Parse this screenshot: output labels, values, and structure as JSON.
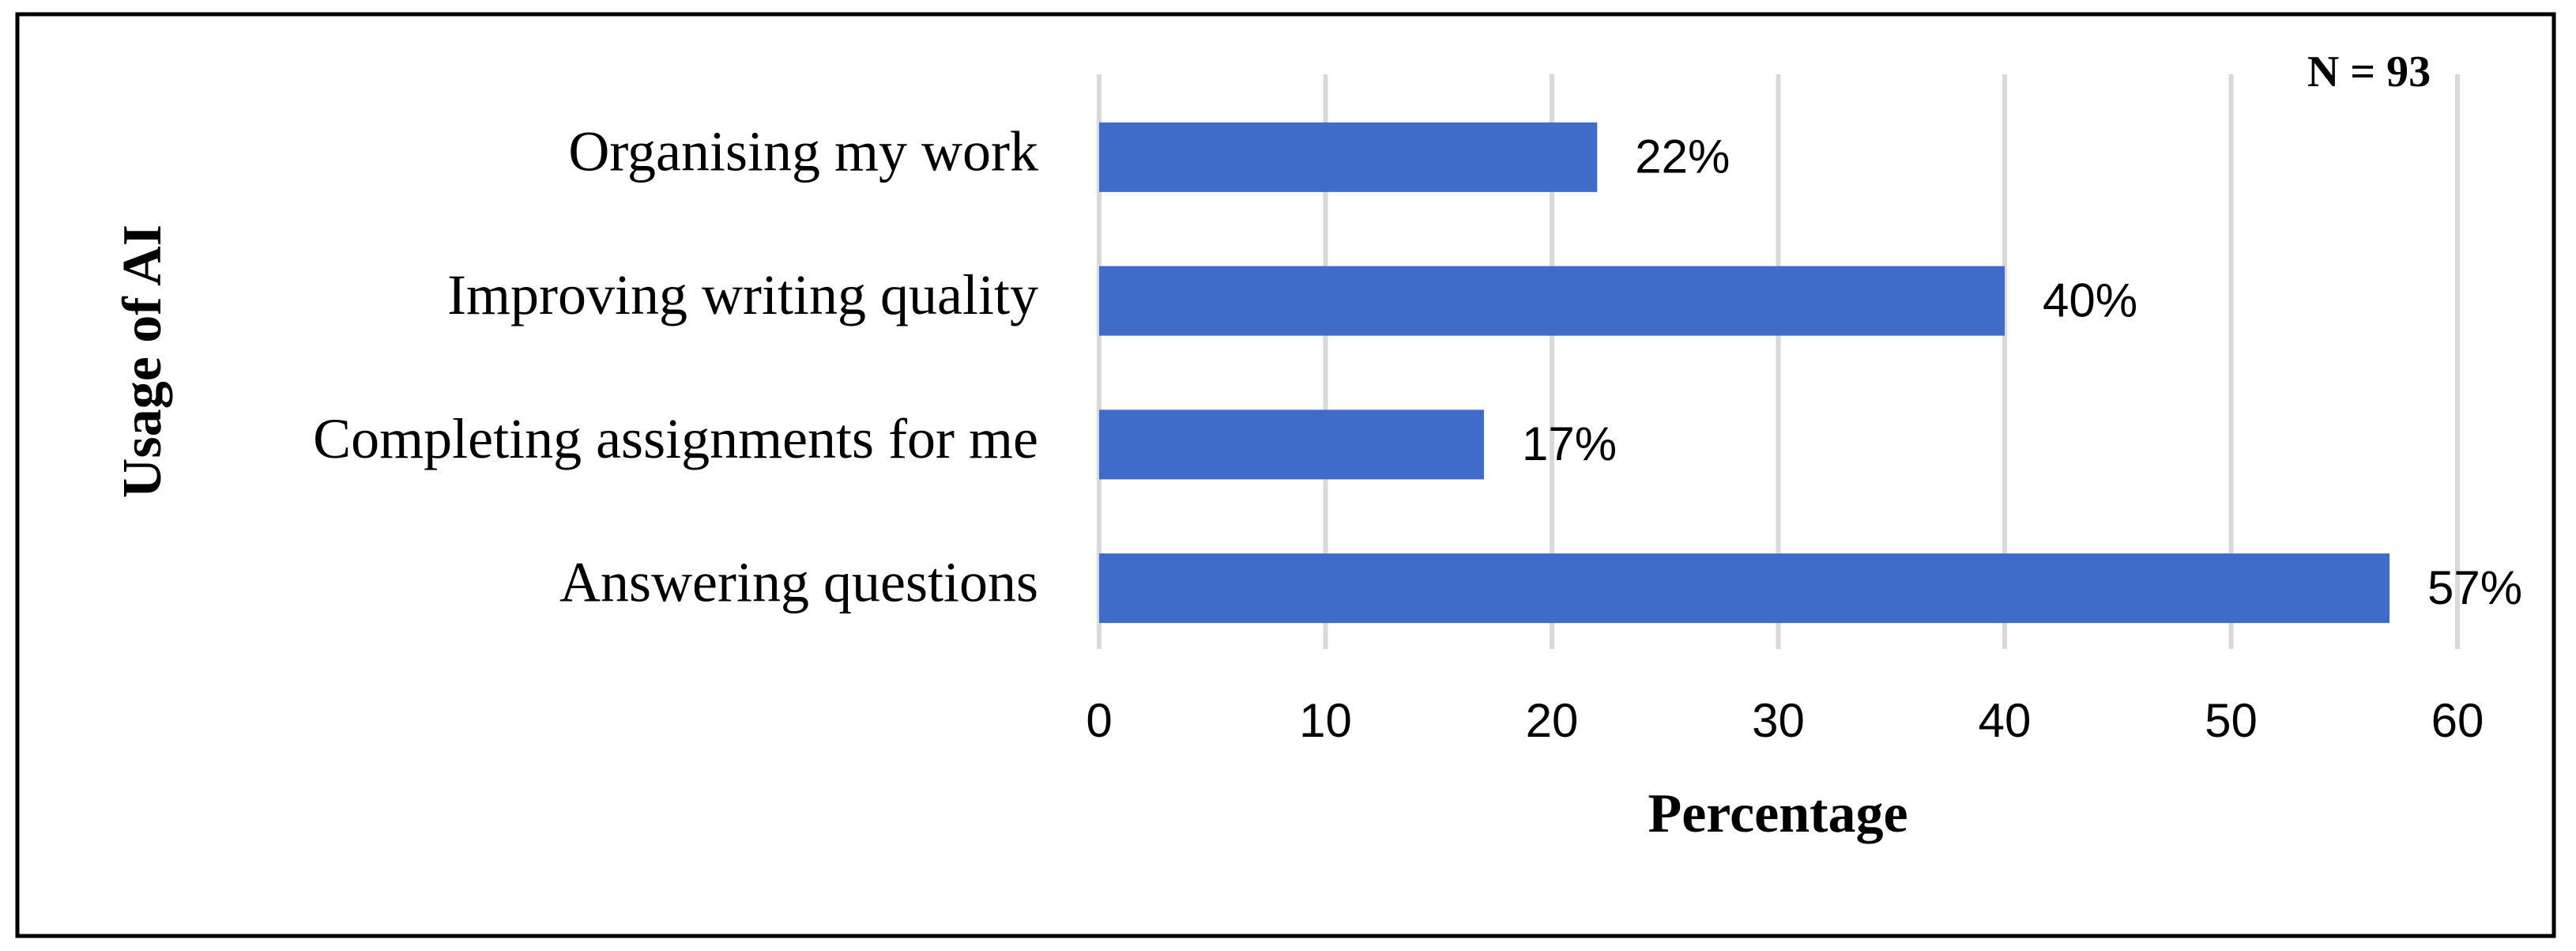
{
  "chart_data": {
    "type": "bar",
    "orientation": "horizontal",
    "annotation": "N = 93",
    "xlabel": "Percentage",
    "ylabel": "Usage of AI",
    "categories": [
      "Organising my work",
      "Improving writing quality",
      "Completing assignments for me",
      "Answering questions"
    ],
    "values": [
      22,
      40,
      17,
      57
    ],
    "value_labels": [
      "22%",
      "40%",
      "17%",
      "57%"
    ],
    "color": "#3f6cc8",
    "xlim": [
      0,
      60
    ],
    "xticks": [
      0,
      10,
      20,
      30,
      40,
      50,
      60
    ],
    "grid": true
  }
}
